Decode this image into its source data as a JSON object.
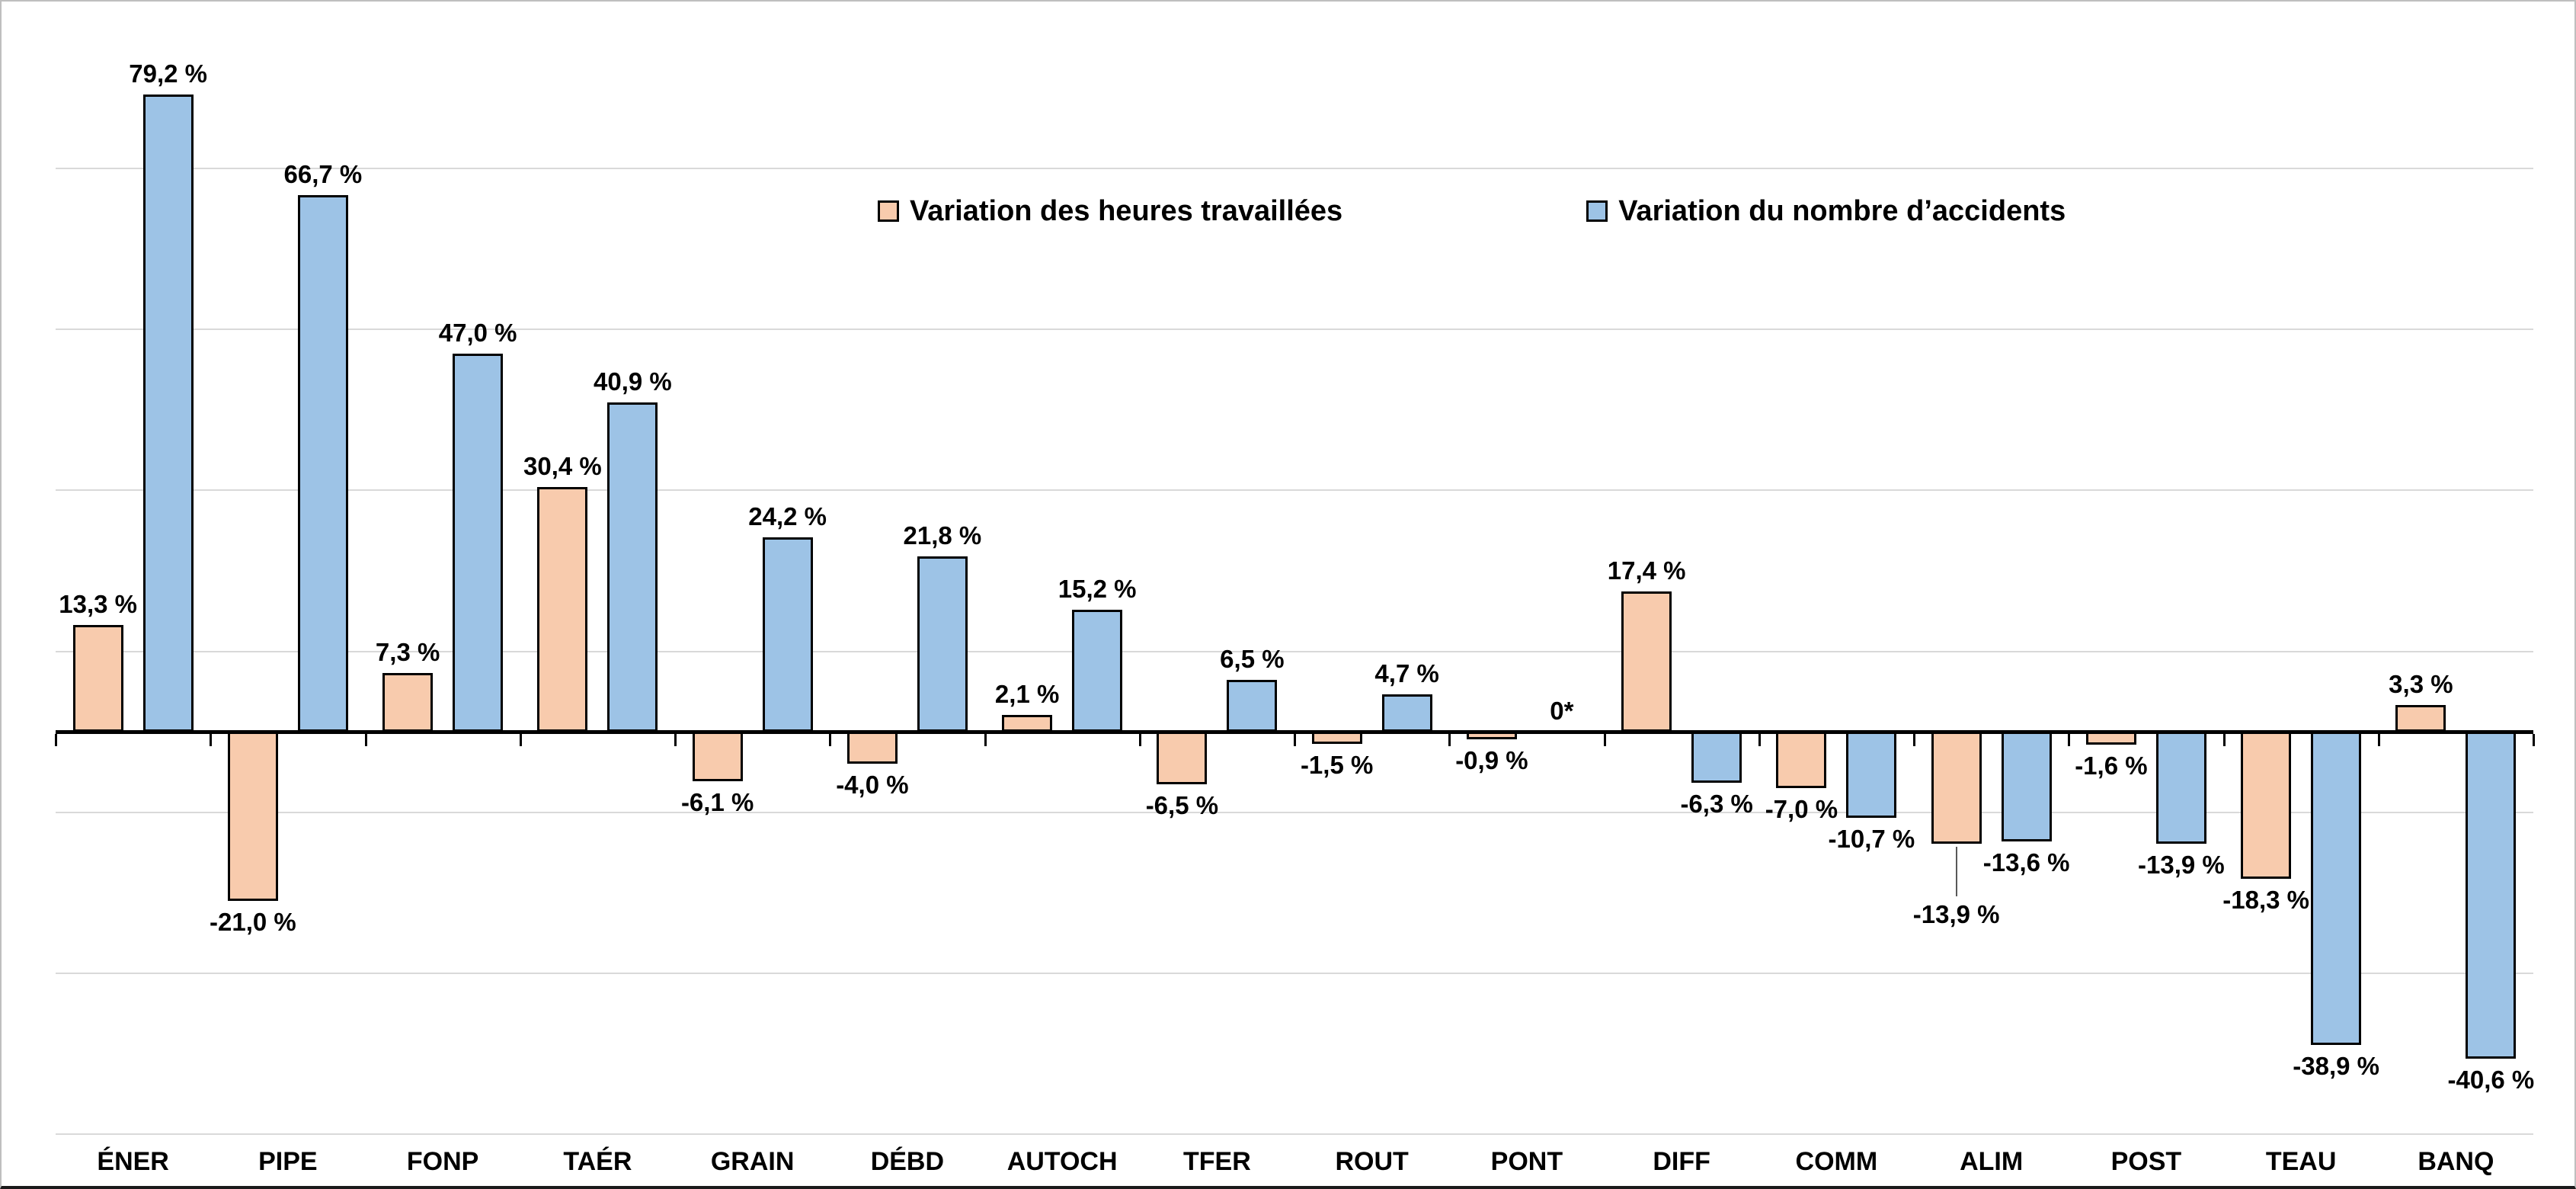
{
  "chart_data": {
    "type": "bar",
    "title": "",
    "xlabel": "",
    "ylabel": "",
    "categories": [
      "ÉNER",
      "PIPE",
      "FONP",
      "TAÉR",
      "GRAIN",
      "DÉBD",
      "AUTOCH",
      "TFER",
      "ROUT",
      "PONT",
      "DIFF",
      "COMM",
      "ALIM",
      "POST",
      "TEAU",
      "BANQ"
    ],
    "series": [
      {
        "name": "Variation des heures travaillées",
        "color": "#F8CBAD",
        "values": [
          13.3,
          -21.0,
          7.3,
          30.4,
          -6.1,
          -4.0,
          2.1,
          -6.5,
          -1.5,
          -0.9,
          17.4,
          -7.0,
          -13.9,
          -1.6,
          -18.3,
          3.3
        ],
        "labels": [
          "13,3 %",
          "-21,0 %",
          "7,3 %",
          "30,4 %",
          "-6,1 %",
          "-4,0 %",
          "2,1 %",
          "-6,5 %",
          "-1,5 %",
          "-0,9 %",
          "17,4 %",
          "-7,0 %",
          "-13,9 %",
          "-1,6 %",
          "-18,3 %",
          "3,3 %"
        ]
      },
      {
        "name": "Variation du nombre d’accidents",
        "color": "#9DC3E6",
        "values": [
          79.2,
          66.7,
          47.0,
          40.9,
          24.2,
          21.8,
          15.2,
          6.5,
          4.7,
          0,
          -6.3,
          -10.7,
          -13.6,
          -13.9,
          -38.9,
          -40.6
        ],
        "labels": [
          "79,2 %",
          "66,7 %",
          "47,0 %",
          "40,9 %",
          "24,2 %",
          "21,8 %",
          "15,2 %",
          "6,5 %",
          "4,7 %",
          "0*",
          "-6,3 %",
          "-10,7 %",
          "-13,6 %",
          "-13,9 %",
          "-38,9 %",
          "-40,6 %"
        ]
      }
    ],
    "ylim": [
      -50,
      90
    ],
    "grid": true,
    "grid_unit": 20,
    "legend_position": "top-center",
    "label_overrides": [
      {
        "series": 0,
        "index": 12,
        "dy": 65,
        "leader": true
      }
    ]
  },
  "colors": {
    "grid": "#D9D9D9",
    "axis": "#000000",
    "chart_border": "#BFBFBF",
    "background": "#FFFFFF"
  }
}
